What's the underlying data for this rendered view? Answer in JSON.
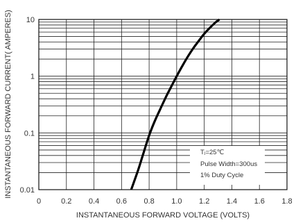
{
  "chart_data": {
    "type": "line",
    "title": "",
    "xlabel": "INSTANTANEOUS FORWARD VOLTAGE (VOLTS)",
    "ylabel": "INSTANTANEOUS FORWARD CURRENT( AMPERES)",
    "xlim": [
      0,
      1.8
    ],
    "ylim": [
      0.01,
      10
    ],
    "yscale": "log",
    "grid": true,
    "x_ticks": [
      "0",
      "0.2",
      "0.4",
      "0.6",
      "0.8",
      "1.0",
      "1.2",
      "1.4",
      "1.6",
      "1.8"
    ],
    "y_ticks": [
      "0.01",
      "0.1",
      "1",
      "10"
    ],
    "annotations": [
      "Tⱼ=25℃",
      "Pulse Width=300us",
      "1% Duty Cycle"
    ],
    "series": [
      {
        "x": [
          0.67,
          0.72,
          0.76,
          0.8,
          0.84,
          0.88,
          0.92,
          0.96,
          1.0,
          1.04,
          1.08,
          1.12,
          1.16,
          1.2,
          1.24,
          1.28,
          1.31
        ],
        "y": [
          0.01,
          0.022,
          0.045,
          0.09,
          0.16,
          0.26,
          0.42,
          0.65,
          1.0,
          1.5,
          2.2,
          3.1,
          4.2,
          5.6,
          7.1,
          8.8,
          10.0
        ]
      }
    ]
  }
}
